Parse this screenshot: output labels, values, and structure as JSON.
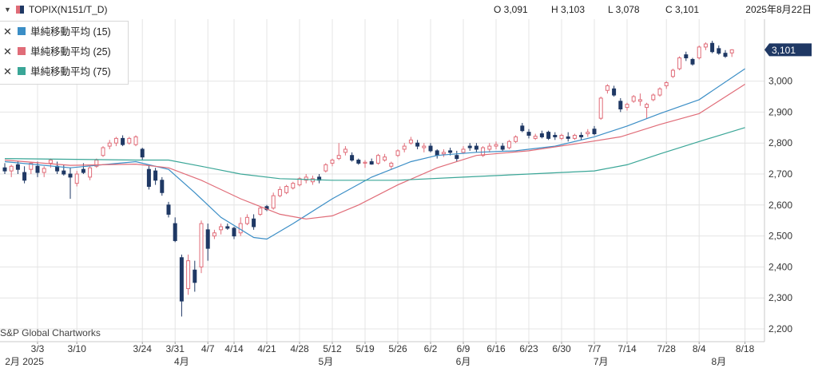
{
  "header": {
    "symbol": "TOPIX(N151/T_D)",
    "open": "O 3,091",
    "high": "H 3,103",
    "low": "L 3,078",
    "close": "C 3,101",
    "date": "2025年8月22日"
  },
  "legend": {
    "items": [
      {
        "label": "単純移動平均 (15)",
        "color": "#3b8ec6"
      },
      {
        "label": "単純移動平均 (25)",
        "color": "#e06c78"
      },
      {
        "label": "単純移動平均 (75)",
        "color": "#3aa697"
      }
    ]
  },
  "watermark": "S&P Global Chartworks",
  "price_tag": "3,101",
  "colors": {
    "up": "#e06c78",
    "down": "#1f3864",
    "grid": "#e4e4e4",
    "tag": "#1f3864"
  },
  "chart_data": {
    "type": "candlestick",
    "yaxis": {
      "min": 2200,
      "max": 3100,
      "ticks": [
        "2,200",
        "2,300",
        "2,400",
        "2,500",
        "2,600",
        "2,700",
        "2,800",
        "2,900",
        "3,000",
        "3,101"
      ],
      "position": "right"
    },
    "xaxis": {
      "ticks": [
        "3/3",
        "3/10",
        "3/24",
        "3/31",
        "4/7",
        "4/14",
        "4/21",
        "4/28",
        "5/12",
        "5/19",
        "5/26",
        "6/2",
        "6/9",
        "6/16",
        "6/23",
        "6/30",
        "7/7",
        "7/14",
        "7/28",
        "8/4",
        "8/18"
      ],
      "months": [
        "2月 2025",
        "4月",
        "5月",
        "6月",
        "7月",
        "8月"
      ]
    },
    "grid": true,
    "candles": [
      {
        "o": 2720,
        "h": 2735,
        "l": 2700,
        "c": 2710
      },
      {
        "o": 2710,
        "h": 2730,
        "l": 2690,
        "c": 2725
      },
      {
        "o": 2730,
        "h": 2740,
        "l": 2700,
        "c": 2715
      },
      {
        "o": 2705,
        "h": 2725,
        "l": 2670,
        "c": 2680
      },
      {
        "o": 2715,
        "h": 2740,
        "l": 2700,
        "c": 2735
      },
      {
        "o": 2725,
        "h": 2740,
        "l": 2690,
        "c": 2705
      },
      {
        "o": 2705,
        "h": 2725,
        "l": 2690,
        "c": 2718
      },
      {
        "o": 2735,
        "h": 2750,
        "l": 2720,
        "c": 2745
      },
      {
        "o": 2725,
        "h": 2740,
        "l": 2700,
        "c": 2710
      },
      {
        "o": 2710,
        "h": 2730,
        "l": 2695,
        "c": 2700
      },
      {
        "o": 2700,
        "h": 2720,
        "l": 2620,
        "c": 2690
      },
      {
        "o": 2670,
        "h": 2710,
        "l": 2660,
        "c": 2700
      },
      {
        "o": 2715,
        "h": 2735,
        "l": 2700,
        "c": 2705
      },
      {
        "o": 2690,
        "h": 2725,
        "l": 2680,
        "c": 2720
      },
      {
        "o": 2725,
        "h": 2750,
        "l": 2720,
        "c": 2745
      },
      {
        "o": 2760,
        "h": 2790,
        "l": 2755,
        "c": 2785
      },
      {
        "o": 2790,
        "h": 2810,
        "l": 2780,
        "c": 2800
      },
      {
        "o": 2800,
        "h": 2820,
        "l": 2790,
        "c": 2815
      },
      {
        "o": 2815,
        "h": 2825,
        "l": 2790,
        "c": 2795
      },
      {
        "o": 2800,
        "h": 2820,
        "l": 2795,
        "c": 2815
      },
      {
        "o": 2795,
        "h": 2825,
        "l": 2790,
        "c": 2820
      },
      {
        "o": 2780,
        "h": 2785,
        "l": 2745,
        "c": 2755
      },
      {
        "o": 2715,
        "h": 2730,
        "l": 2650,
        "c": 2660
      },
      {
        "o": 2710,
        "h": 2720,
        "l": 2665,
        "c": 2680
      },
      {
        "o": 2680,
        "h": 2690,
        "l": 2630,
        "c": 2640
      },
      {
        "o": 2600,
        "h": 2610,
        "l": 2560,
        "c": 2570
      },
      {
        "o": 2540,
        "h": 2560,
        "l": 2480,
        "c": 2485
      },
      {
        "o": 2430,
        "h": 2440,
        "l": 2240,
        "c": 2290
      },
      {
        "o": 2330,
        "h": 2440,
        "l": 2310,
        "c": 2420
      },
      {
        "o": 2390,
        "h": 2420,
        "l": 2320,
        "c": 2350
      },
      {
        "o": 2400,
        "h": 2550,
        "l": 2380,
        "c": 2540
      },
      {
        "o": 2520,
        "h": 2540,
        "l": 2420,
        "c": 2460
      },
      {
        "o": 2500,
        "h": 2520,
        "l": 2490,
        "c": 2510
      },
      {
        "o": 2520,
        "h": 2540,
        "l": 2505,
        "c": 2530
      },
      {
        "o": 2530,
        "h": 2540,
        "l": 2520,
        "c": 2525
      },
      {
        "o": 2525,
        "h": 2530,
        "l": 2490,
        "c": 2500
      },
      {
        "o": 2510,
        "h": 2560,
        "l": 2500,
        "c": 2540
      },
      {
        "o": 2540,
        "h": 2570,
        "l": 2535,
        "c": 2560
      },
      {
        "o": 2555,
        "h": 2570,
        "l": 2520,
        "c": 2530
      },
      {
        "o": 2570,
        "h": 2595,
        "l": 2565,
        "c": 2590
      },
      {
        "o": 2595,
        "h": 2600,
        "l": 2580,
        "c": 2585
      },
      {
        "o": 2590,
        "h": 2640,
        "l": 2585,
        "c": 2630
      },
      {
        "o": 2630,
        "h": 2660,
        "l": 2625,
        "c": 2650
      },
      {
        "o": 2640,
        "h": 2665,
        "l": 2635,
        "c": 2660
      },
      {
        "o": 2655,
        "h": 2675,
        "l": 2650,
        "c": 2670
      },
      {
        "o": 2665,
        "h": 2690,
        "l": 2660,
        "c": 2685
      },
      {
        "o": 2680,
        "h": 2700,
        "l": 2670,
        "c": 2690
      },
      {
        "o": 2675,
        "h": 2695,
        "l": 2665,
        "c": 2685
      },
      {
        "o": 2690,
        "h": 2700,
        "l": 2670,
        "c": 2680
      },
      {
        "o": 2710,
        "h": 2735,
        "l": 2705,
        "c": 2730
      },
      {
        "o": 2735,
        "h": 2750,
        "l": 2725,
        "c": 2745
      },
      {
        "o": 2750,
        "h": 2800,
        "l": 2745,
        "c": 2760
      },
      {
        "o": 2770,
        "h": 2790,
        "l": 2760,
        "c": 2780
      },
      {
        "o": 2760,
        "h": 2770,
        "l": 2740,
        "c": 2745
      },
      {
        "o": 2745,
        "h": 2750,
        "l": 2730,
        "c": 2735
      },
      {
        "o": 2735,
        "h": 2745,
        "l": 2720,
        "c": 2738
      },
      {
        "o": 2740,
        "h": 2750,
        "l": 2730,
        "c": 2732
      },
      {
        "o": 2735,
        "h": 2765,
        "l": 2730,
        "c": 2760
      },
      {
        "o": 2745,
        "h": 2765,
        "l": 2740,
        "c": 2755
      },
      {
        "o": 2725,
        "h": 2740,
        "l": 2715,
        "c": 2735
      },
      {
        "o": 2760,
        "h": 2780,
        "l": 2755,
        "c": 2775
      },
      {
        "o": 2780,
        "h": 2800,
        "l": 2770,
        "c": 2790
      },
      {
        "o": 2800,
        "h": 2820,
        "l": 2795,
        "c": 2810
      },
      {
        "o": 2800,
        "h": 2810,
        "l": 2780,
        "c": 2790
      },
      {
        "o": 2785,
        "h": 2800,
        "l": 2770,
        "c": 2790
      },
      {
        "o": 2790,
        "h": 2800,
        "l": 2770,
        "c": 2775
      },
      {
        "o": 2775,
        "h": 2780,
        "l": 2750,
        "c": 2760
      },
      {
        "o": 2765,
        "h": 2780,
        "l": 2755,
        "c": 2770
      },
      {
        "o": 2775,
        "h": 2785,
        "l": 2760,
        "c": 2770
      },
      {
        "o": 2760,
        "h": 2775,
        "l": 2740,
        "c": 2750
      },
      {
        "o": 2770,
        "h": 2790,
        "l": 2765,
        "c": 2780
      },
      {
        "o": 2790,
        "h": 2800,
        "l": 2775,
        "c": 2785
      },
      {
        "o": 2790,
        "h": 2800,
        "l": 2770,
        "c": 2780
      },
      {
        "o": 2760,
        "h": 2790,
        "l": 2755,
        "c": 2785
      },
      {
        "o": 2780,
        "h": 2800,
        "l": 2770,
        "c": 2790
      },
      {
        "o": 2790,
        "h": 2805,
        "l": 2780,
        "c": 2795
      },
      {
        "o": 2790,
        "h": 2800,
        "l": 2775,
        "c": 2780
      },
      {
        "o": 2785,
        "h": 2810,
        "l": 2780,
        "c": 2805
      },
      {
        "o": 2805,
        "h": 2825,
        "l": 2800,
        "c": 2820
      },
      {
        "o": 2855,
        "h": 2865,
        "l": 2835,
        "c": 2840
      },
      {
        "o": 2835,
        "h": 2845,
        "l": 2815,
        "c": 2825
      },
      {
        "o": 2815,
        "h": 2830,
        "l": 2810,
        "c": 2822
      },
      {
        "o": 2830,
        "h": 2840,
        "l": 2815,
        "c": 2820
      },
      {
        "o": 2835,
        "h": 2840,
        "l": 2810,
        "c": 2815
      },
      {
        "o": 2825,
        "h": 2835,
        "l": 2810,
        "c": 2820
      },
      {
        "o": 2815,
        "h": 2830,
        "l": 2810,
        "c": 2825
      },
      {
        "o": 2820,
        "h": 2835,
        "l": 2805,
        "c": 2815
      },
      {
        "o": 2815,
        "h": 2830,
        "l": 2810,
        "c": 2825
      },
      {
        "o": 2825,
        "h": 2835,
        "l": 2810,
        "c": 2820
      },
      {
        "o": 2830,
        "h": 2845,
        "l": 2820,
        "c": 2835
      },
      {
        "o": 2845,
        "h": 2855,
        "l": 2825,
        "c": 2830
      },
      {
        "o": 2880,
        "h": 2950,
        "l": 2875,
        "c": 2945
      },
      {
        "o": 2970,
        "h": 2990,
        "l": 2960,
        "c": 2985
      },
      {
        "o": 2975,
        "h": 2985,
        "l": 2950,
        "c": 2955
      },
      {
        "o": 2935,
        "h": 2945,
        "l": 2900,
        "c": 2910
      },
      {
        "o": 2915,
        "h": 2930,
        "l": 2905,
        "c": 2925
      },
      {
        "o": 2935,
        "h": 2955,
        "l": 2930,
        "c": 2950
      },
      {
        "o": 2935,
        "h": 2960,
        "l": 2920,
        "c": 2940
      },
      {
        "o": 2915,
        "h": 2930,
        "l": 2880,
        "c": 2925
      },
      {
        "o": 2940,
        "h": 2960,
        "l": 2935,
        "c": 2955
      },
      {
        "o": 2955,
        "h": 2980,
        "l": 2950,
        "c": 2975
      },
      {
        "o": 2985,
        "h": 3000,
        "l": 2975,
        "c": 2995
      },
      {
        "o": 3015,
        "h": 3040,
        "l": 3010,
        "c": 3035
      },
      {
        "o": 3040,
        "h": 3080,
        "l": 3035,
        "c": 3075
      },
      {
        "o": 3085,
        "h": 3095,
        "l": 3065,
        "c": 3075
      },
      {
        "o": 3070,
        "h": 3075,
        "l": 3050,
        "c": 3055
      },
      {
        "o": 3075,
        "h": 3115,
        "l": 3070,
        "c": 3110
      },
      {
        "o": 3110,
        "h": 3125,
        "l": 3100,
        "c": 3120
      },
      {
        "o": 3122,
        "h": 3130,
        "l": 3090,
        "c": 3095
      },
      {
        "o": 3105,
        "h": 3115,
        "l": 3085,
        "c": 3090
      },
      {
        "o": 3090,
        "h": 3100,
        "l": 3075,
        "c": 3080
      },
      {
        "o": 3091,
        "h": 3103,
        "l": 3078,
        "c": 3101
      }
    ],
    "series": [
      {
        "name": "単純移動平均 (15)",
        "color": "#3b8ec6",
        "values": [
          [
            0,
            2740
          ],
          [
            10,
            2720
          ],
          [
            20,
            2740
          ],
          [
            25,
            2715
          ],
          [
            29,
            2640
          ],
          [
            33,
            2560
          ],
          [
            38,
            2495
          ],
          [
            40,
            2490
          ],
          [
            44,
            2540
          ],
          [
            50,
            2620
          ],
          [
            56,
            2690
          ],
          [
            62,
            2740
          ],
          [
            66,
            2760
          ],
          [
            72,
            2770
          ],
          [
            78,
            2775
          ],
          [
            84,
            2790
          ],
          [
            90,
            2820
          ],
          [
            95,
            2855
          ],
          [
            100,
            2895
          ],
          [
            106,
            2940
          ],
          [
            113,
            3040
          ]
        ]
      },
      {
        "name": "単純移動平均 (25)",
        "color": "#e06c78",
        "values": [
          [
            0,
            2745
          ],
          [
            10,
            2728
          ],
          [
            20,
            2732
          ],
          [
            25,
            2720
          ],
          [
            30,
            2680
          ],
          [
            36,
            2620
          ],
          [
            42,
            2570
          ],
          [
            46,
            2555
          ],
          [
            50,
            2565
          ],
          [
            54,
            2600
          ],
          [
            60,
            2665
          ],
          [
            66,
            2720
          ],
          [
            72,
            2760
          ],
          [
            80,
            2775
          ],
          [
            88,
            2800
          ],
          [
            94,
            2820
          ],
          [
            100,
            2860
          ],
          [
            106,
            2895
          ],
          [
            113,
            2990
          ]
        ]
      },
      {
        "name": "単純移動平均 (75)",
        "color": "#3aa697",
        "values": [
          [
            0,
            2750
          ],
          [
            20,
            2745
          ],
          [
            25,
            2745
          ],
          [
            30,
            2725
          ],
          [
            36,
            2700
          ],
          [
            42,
            2685
          ],
          [
            50,
            2680
          ],
          [
            60,
            2680
          ],
          [
            70,
            2690
          ],
          [
            80,
            2700
          ],
          [
            90,
            2710
          ],
          [
            95,
            2730
          ],
          [
            100,
            2765
          ],
          [
            106,
            2805
          ],
          [
            113,
            2850
          ]
        ]
      }
    ]
  }
}
